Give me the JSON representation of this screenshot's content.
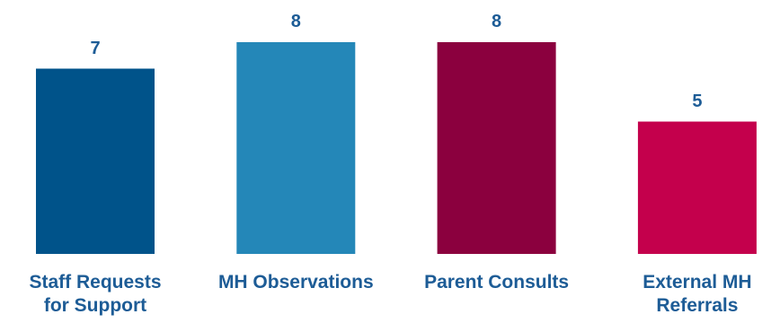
{
  "chart_data": {
    "type": "bar",
    "categories": [
      "Staff Requests\nfor Support",
      "MH Observations",
      "Parent Consults",
      "External MH\nReferrals"
    ],
    "values": [
      7,
      8,
      8,
      5
    ],
    "colors": [
      "#00538a",
      "#2487b8",
      "#8b003e",
      "#c4004c"
    ]
  }
}
